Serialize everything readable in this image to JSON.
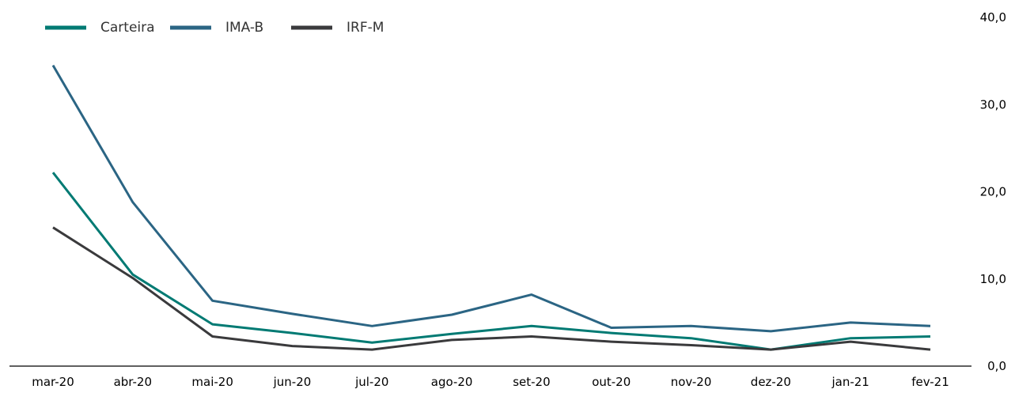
{
  "chart_data": {
    "type": "line",
    "categories": [
      "mar-20",
      "abr-20",
      "mai-20",
      "jun-20",
      "jul-20",
      "ago-20",
      "set-20",
      "out-20",
      "nov-20",
      "dez-20",
      "jan-21",
      "fev-21"
    ],
    "series": [
      {
        "name": "Carteira",
        "color": "#007a73",
        "values": [
          22.2,
          10.5,
          4.8,
          3.8,
          2.7,
          3.7,
          4.6,
          3.8,
          3.2,
          1.9,
          3.2,
          3.4
        ]
      },
      {
        "name": "IMA-B",
        "color": "#2b6584",
        "values": [
          34.5,
          18.8,
          7.5,
          6.0,
          4.6,
          5.9,
          8.2,
          4.4,
          4.6,
          4.0,
          5.0,
          4.6
        ]
      },
      {
        "name": "IRF-M",
        "color": "#3a3a3c",
        "values": [
          15.9,
          10.1,
          3.4,
          2.3,
          1.9,
          3.0,
          3.4,
          2.8,
          2.4,
          1.9,
          2.8,
          1.9
        ]
      }
    ],
    "ylim": [
      0,
      40
    ],
    "y_ticks": [
      "0,0",
      "10,0",
      "20,0",
      "30,0",
      "40,0"
    ],
    "y_axis_side": "right",
    "grid": false,
    "legend_position": "top-left",
    "title": "",
    "xlabel": "",
    "ylabel": ""
  }
}
